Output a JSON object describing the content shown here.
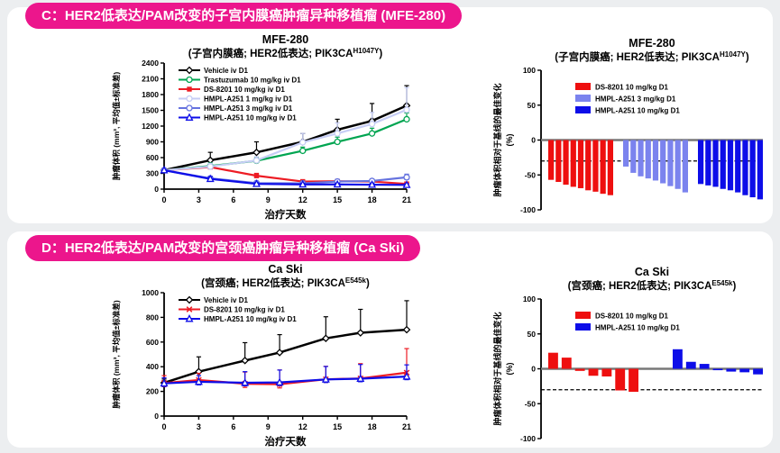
{
  "page": {
    "background": "#eceef0",
    "panel_background": "#ffffff",
    "accent_pink": "#EC168C"
  },
  "sections": [
    {
      "label": "C",
      "banner": "C：HER2低表达/PAM改变的子宫内膜癌肿瘤异种移植瘤 (MFE-280)"
    },
    {
      "label": "D",
      "banner": "D：HER2低表达/PAM改变的宫颈癌肿瘤异种移植瘤 (Ca Ski)"
    }
  ],
  "chart_data": [
    {
      "type": "line",
      "title": "MFE-280",
      "subtitle": {
        "pre": "(子宫内膜癌; HER2低表达; PIK3CA",
        "sup": "H1047Y",
        "post": ")"
      },
      "xlabel": "治疗天数",
      "ylabel": "肿瘤体积 (mm³, 平均值±标准差)",
      "xlim": [
        0,
        21
      ],
      "ylim": [
        0,
        2400
      ],
      "xticks": [
        0,
        3,
        6,
        9,
        12,
        15,
        18,
        21
      ],
      "yticks": [
        0,
        300,
        600,
        900,
        1200,
        1500,
        1800,
        2100,
        2400
      ],
      "x": [
        0,
        4,
        8,
        12,
        15,
        18,
        21
      ],
      "series": [
        {
          "name": "Vehicle iv D1",
          "color": "#000000",
          "marker": "diamond",
          "width": 2.5,
          "values": [
            360,
            550,
            700,
            900,
            1130,
            1300,
            1590
          ],
          "err": [
            30,
            150,
            200,
            160,
            200,
            330,
            380
          ],
          "errd": [
            0,
            0,
            0,
            0,
            0,
            0,
            0
          ]
        },
        {
          "name": "Trastuzumab 10 mg/kg  iv D1",
          "color": "#00A551",
          "marker": "circle",
          "values": [
            360,
            440,
            540,
            730,
            900,
            1060,
            1330
          ],
          "err": [
            0,
            60,
            60,
            70,
            90,
            100,
            120
          ],
          "errd": [
            0,
            0,
            0,
            0,
            0,
            0,
            0
          ]
        },
        {
          "name": "DS-8201 10 mg/kg iv D1",
          "color": "#ED1C24",
          "marker": "square",
          "values": [
            360,
            420,
            255,
            145,
            150,
            145,
            100
          ],
          "err": [
            0,
            40,
            45,
            30,
            30,
            30,
            35
          ],
          "errd": [
            0,
            30,
            35,
            25,
            25,
            25,
            25
          ]
        },
        {
          "name": "HMPL-A251 1 mg/kg iv D1",
          "color": "#C6CDF5",
          "marker": "circle",
          "values": [
            360,
            430,
            545,
            890,
            1060,
            1240,
            1510
          ],
          "err": [
            0,
            60,
            70,
            170,
            200,
            220,
            420
          ],
          "errd": [
            0,
            0,
            0,
            0,
            0,
            0,
            0
          ]
        },
        {
          "name": "HMPL-A251 3 mg/kg iv D1",
          "color": "#6673DF",
          "marker": "circle",
          "values": [
            360,
            205,
            115,
            110,
            145,
            155,
            225
          ],
          "err": [
            0,
            40,
            30,
            30,
            40,
            40,
            60
          ],
          "errd": [
            0,
            30,
            25,
            25,
            30,
            30,
            40
          ]
        },
        {
          "name": "HMPL-A251 10 mg/kg iv D1",
          "color": "#0D0DE8",
          "marker": "triangle",
          "values": [
            360,
            195,
            100,
            90,
            90,
            85,
            80
          ],
          "err": [
            0,
            40,
            25,
            25,
            25,
            25,
            25
          ],
          "errd": [
            0,
            30,
            20,
            20,
            20,
            20,
            20
          ]
        }
      ]
    },
    {
      "type": "bar",
      "title": "MFE-280",
      "subtitle": {
        "pre": "(子宫内膜癌; HER2低表达; PIK3CA",
        "sup": "H1047Y",
        "post": ")"
      },
      "ylabel": "肿瘤体积相对于基线的最佳变化",
      "ylabel2": "(%)",
      "ylim": [
        -100,
        100
      ],
      "yticks": [
        100,
        50,
        0,
        -50,
        -100
      ],
      "dashed_line": -30,
      "bar_gap": 2,
      "group_gap": 9,
      "groups": [
        {
          "name": "DS-8201  10 mg/kg  D1",
          "color": "#EE0F0F",
          "values": [
            -57,
            -60,
            -64,
            -67,
            -69,
            -72,
            -74,
            -77,
            -79
          ]
        },
        {
          "name": "HMPL-A251 3 mg/kg  D1",
          "color": "#7B83EE",
          "values": [
            -38,
            -47,
            -52,
            -55,
            -58,
            -62,
            -66,
            -70,
            -75
          ]
        },
        {
          "name": "HMPL-A251 10 mg/kg  D1",
          "color": "#0D0DE8",
          "values": [
            -63,
            -65,
            -67,
            -70,
            -72,
            -75,
            -79,
            -82,
            -85
          ]
        }
      ]
    },
    {
      "type": "line",
      "title": "Ca Ski",
      "subtitle": {
        "pre": "(宫颈癌; HER2低表达; PIK3CA",
        "sup": "E545k",
        "post": ")"
      },
      "xlabel": "治疗天数",
      "ylabel": "肿瘤体积 (mm³, 平均值±标准差)",
      "xlim": [
        0,
        21
      ],
      "ylim": [
        0,
        1000
      ],
      "xticks": [
        0,
        3,
        6,
        9,
        12,
        15,
        18,
        21
      ],
      "yticks": [
        0,
        200,
        400,
        600,
        800,
        1000
      ],
      "x": [
        0,
        3,
        7,
        10,
        14,
        17,
        21
      ],
      "series": [
        {
          "name": "Vehicle iv D1",
          "color": "#000000",
          "marker": "diamond",
          "width": 2.5,
          "values": [
            270,
            360,
            450,
            515,
            630,
            675,
            700
          ],
          "err": [
            30,
            120,
            145,
            145,
            175,
            190,
            235
          ],
          "errd": [
            0,
            0,
            0,
            0,
            0,
            0,
            0
          ]
        },
        {
          "name": "DS-8201 10 mg/kg iv D1",
          "color": "#ED1C24",
          "marker": "x",
          "values": [
            268,
            292,
            262,
            258,
            298,
            305,
            352
          ],
          "err": [
            60,
            55,
            95,
            115,
            105,
            120,
            195
          ],
          "errd": [
            30,
            25,
            30,
            30,
            25,
            25,
            35
          ]
        },
        {
          "name": "HMPL-A251 10 mg/kg iv D1",
          "color": "#0D0DE8",
          "marker": "triangle",
          "values": [
            265,
            278,
            270,
            273,
            297,
            303,
            320
          ],
          "err": [
            45,
            50,
            90,
            100,
            105,
            115,
            95
          ],
          "errd": [
            25,
            25,
            25,
            25,
            25,
            25,
            25
          ]
        }
      ]
    },
    {
      "type": "bar",
      "title": "Ca Ski",
      "subtitle": {
        "pre": "(宫颈癌; HER2低表达; PIK3CA",
        "sup": "E545k",
        "post": ")"
      },
      "ylabel": "肿瘤体积相对于基线的最佳变化",
      "ylabel2": "(%)",
      "ylim": [
        -100,
        100
      ],
      "yticks": [
        100,
        50,
        0,
        -50,
        -100
      ],
      "dashed_line": -30,
      "bar_gap": 4,
      "group_gap": 34,
      "groups": [
        {
          "name": "DS-8201  10 mg/kg  D1",
          "color": "#EE0F0F",
          "values": [
            23,
            16,
            -3,
            -10,
            -11,
            -31,
            -33
          ]
        },
        {
          "name": "HMPL-A251 10 mg/kg  D1",
          "color": "#0D0DE8",
          "values": [
            28,
            10,
            7,
            -2,
            -4,
            -5,
            -8
          ]
        }
      ]
    }
  ]
}
